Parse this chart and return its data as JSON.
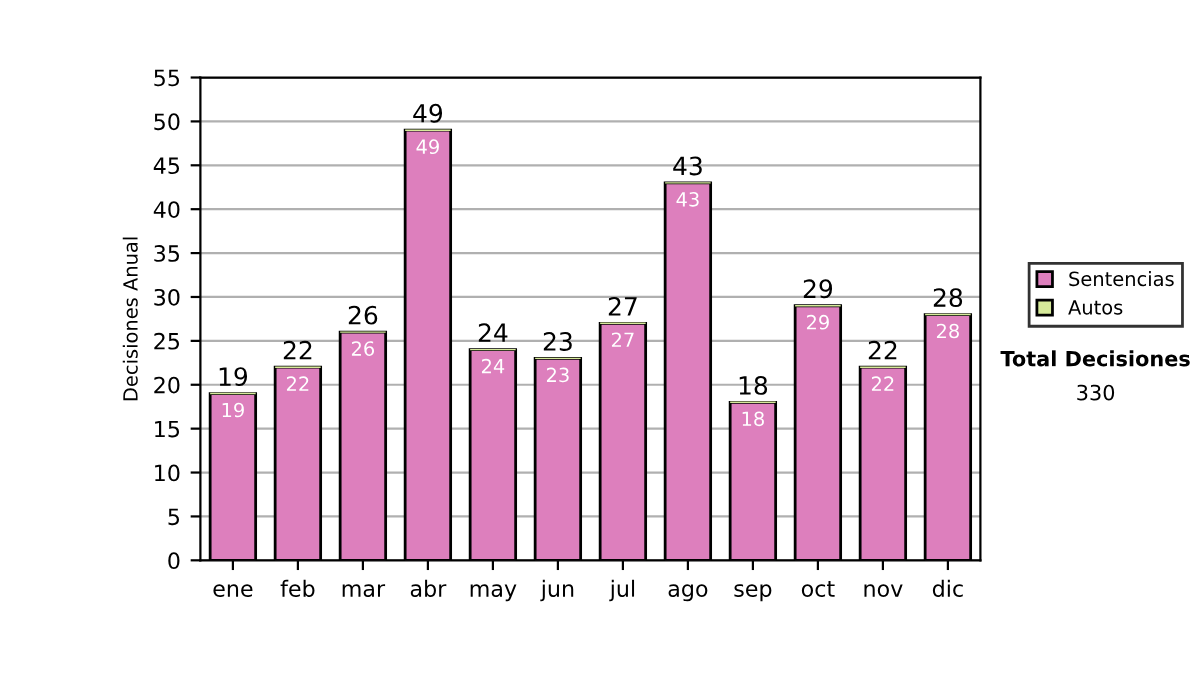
{
  "chart_data": {
    "type": "bar",
    "stacked": true,
    "ylabel": "Decisiones Anual",
    "categories": [
      "ene",
      "feb",
      "mar",
      "abr",
      "may",
      "jun",
      "jul",
      "ago",
      "sep",
      "oct",
      "nov",
      "dic"
    ],
    "series": [
      {
        "name": "Sentencias",
        "color": "#dd7fbd",
        "values": [
          19,
          22,
          26,
          49,
          24,
          23,
          27,
          43,
          18,
          29,
          22,
          28
        ],
        "value_labels": [
          "19",
          "22",
          "26",
          "49",
          "24",
          "23",
          "27",
          "43",
          "18",
          "29",
          "22",
          "28"
        ]
      },
      {
        "name": "Autos",
        "color": "#d6ea9a",
        "values": [
          0,
          0,
          0,
          0,
          0,
          0,
          0,
          0,
          0,
          0,
          0,
          0
        ]
      }
    ],
    "totals": [
      "19",
      "22",
      "26",
      "49",
      "24",
      "23",
      "27",
      "43",
      "18",
      "29",
      "22",
      "28"
    ],
    "ylim": [
      0,
      55
    ],
    "yticks": [
      0,
      5,
      10,
      15,
      20,
      25,
      30,
      35,
      40,
      45,
      50,
      55
    ],
    "grid": "y",
    "legend": "right",
    "annotations": [
      "Total Decisiones",
      "330"
    ]
  }
}
